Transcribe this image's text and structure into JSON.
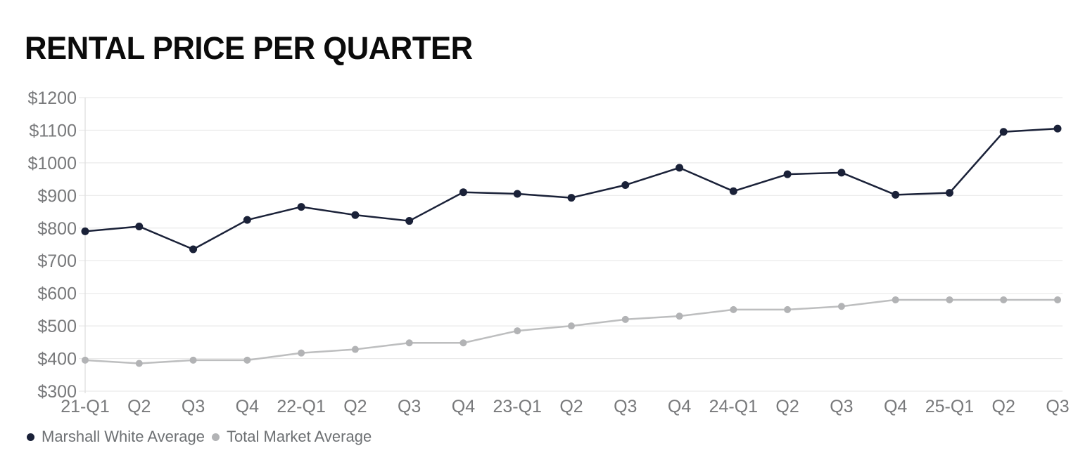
{
  "header": {
    "title": "RENTAL PRICE PER QUARTER"
  },
  "chart_data": {
    "type": "line",
    "title": "RENTAL PRICE PER QUARTER",
    "categories": [
      "21-Q1",
      "Q2",
      "Q3",
      "Q4",
      "22-Q1",
      "Q2",
      "Q3",
      "Q4",
      "23-Q1",
      "Q2",
      "Q3",
      "Q4",
      "24-Q1",
      "Q2",
      "Q3",
      "Q4",
      "25-Q1",
      "Q2",
      "Q3"
    ],
    "series": [
      {
        "name": "Marshall White Average",
        "color": "#1a2138",
        "dot_color": "#1a2138",
        "dot_radius": 5.5,
        "values": [
          790,
          805,
          735,
          825,
          865,
          840,
          822,
          910,
          905,
          893,
          932,
          985,
          913,
          965,
          970,
          902,
          908,
          1095,
          1105
        ]
      },
      {
        "name": "Total Market Average",
        "color": "#bdbebf",
        "dot_color": "#b2b3b5",
        "dot_radius": 5,
        "values": [
          395,
          385,
          395,
          395,
          417,
          428,
          448,
          448,
          485,
          500,
          520,
          530,
          550,
          550,
          560,
          580,
          580,
          580,
          580
        ]
      }
    ],
    "ylim": [
      300,
      1200
    ],
    "y_ticks": [
      1200,
      1100,
      1000,
      900,
      800,
      700,
      600,
      500,
      400,
      300
    ],
    "y_tick_prefix": "$",
    "grid": true,
    "legend_position": "bottom-left"
  },
  "styles": {
    "background": "#ffffff",
    "grid_color": "#eaeaea",
    "axis_color": "#dddddd",
    "tick_label_color": "#78797b",
    "legend_text_color": "#6d7073"
  }
}
